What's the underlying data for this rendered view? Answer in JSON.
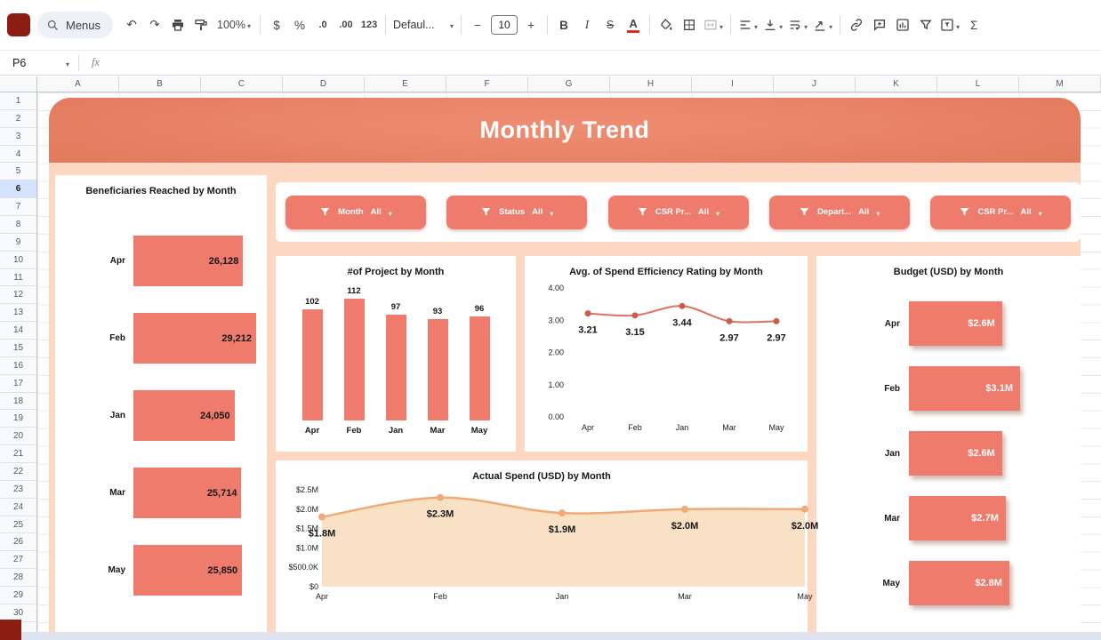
{
  "toolbar": {
    "menus_label": "Menus",
    "zoom_value": "100%",
    "currency_label": "$",
    "percent_label": "%",
    "decrease_decimal_label": ".0",
    "increase_decimal_label": ".00",
    "number_format_label": "123",
    "font_name": "Defaul...",
    "font_size": "10",
    "bold_label": "B",
    "italic_label": "I",
    "strikethrough_label": "S",
    "text_color_label": "A"
  },
  "icons": {
    "undo": "↶",
    "redo": "↷",
    "minus": "−",
    "plus": "+",
    "sigma": "Σ"
  },
  "formula_bar": {
    "name_box": "P6",
    "fx_label": "fx"
  },
  "grid": {
    "columns": [
      "A",
      "B",
      "C",
      "D",
      "E",
      "F",
      "G",
      "H",
      "I",
      "J",
      "K",
      "L",
      "M"
    ],
    "row_count": 31,
    "selected_row": 6
  },
  "dashboard": {
    "title": "Monthly Trend",
    "filters": [
      {
        "label": "Month",
        "value": "All"
      },
      {
        "label": "Status",
        "value": "All"
      },
      {
        "label": "CSR Pr...",
        "value": "All"
      },
      {
        "label": "Depart...",
        "value": "All"
      },
      {
        "label": "CSR Pr...",
        "value": "All"
      }
    ]
  },
  "chart_data": [
    {
      "type": "bar",
      "orientation": "horizontal",
      "title": "Beneficiaries Reached by Month",
      "categories": [
        "Apr",
        "Feb",
        "Jan",
        "Mar",
        "May"
      ],
      "values": [
        26128,
        29212,
        24050,
        25714,
        25850
      ],
      "value_labels": [
        "26,128",
        "29,212",
        "24,050",
        "25,714",
        "25,850"
      ]
    },
    {
      "type": "bar",
      "title": "#of Project by Month",
      "categories": [
        "Apr",
        "Feb",
        "Jan",
        "Mar",
        "May"
      ],
      "values": [
        102,
        112,
        97,
        93,
        96
      ],
      "value_labels": [
        "102",
        "112",
        "97",
        "93",
        "96"
      ]
    },
    {
      "type": "line",
      "title": "Avg. of Spend Efficiency Rating by Month",
      "categories": [
        "Apr",
        "Feb",
        "Jan",
        "Mar",
        "May"
      ],
      "values": [
        3.21,
        3.15,
        3.44,
        2.97,
        2.97
      ],
      "value_labels": [
        "3.21",
        "3.15",
        "3.44",
        "2.97",
        "2.97"
      ],
      "ylim": [
        0,
        4
      ],
      "yticks": [
        "4.00",
        "3.00",
        "2.00",
        "1.00",
        "0.00"
      ]
    },
    {
      "type": "bar",
      "orientation": "horizontal",
      "title": "Budget (USD) by Month",
      "categories": [
        "Apr",
        "Feb",
        "Jan",
        "Mar",
        "May"
      ],
      "values": [
        2.6,
        3.1,
        2.6,
        2.7,
        2.8
      ],
      "value_labels": [
        "$2.6M",
        "$3.1M",
        "$2.6M",
        "$2.7M",
        "$2.8M"
      ]
    },
    {
      "type": "area",
      "title": "Actual Spend (USD) by Month",
      "categories": [
        "Apr",
        "Feb",
        "Jan",
        "Mar",
        "May"
      ],
      "values": [
        1.8,
        2.3,
        1.9,
        2.0,
        2.0
      ],
      "value_labels": [
        "$1.8M",
        "$2.3M",
        "$1.9M",
        "$2.0M",
        "$2.0M"
      ],
      "ylim": [
        0,
        2.5
      ],
      "yticks": [
        "$2.5M",
        "$2.0M",
        "$1.5M",
        "$1.0M",
        "$500.0K",
        "$0"
      ]
    }
  ],
  "colors": {
    "accent_coral": "#ee7b6c",
    "banner_dark": "#b95335",
    "background_peach": "#fcd8c2",
    "area_fill": "#f9e1c6",
    "area_line": "#eeab77",
    "line_stroke": "#dd7260",
    "sheet_tab_red": "#8c1d13",
    "selected_row_bg": "#d3e3fd"
  }
}
